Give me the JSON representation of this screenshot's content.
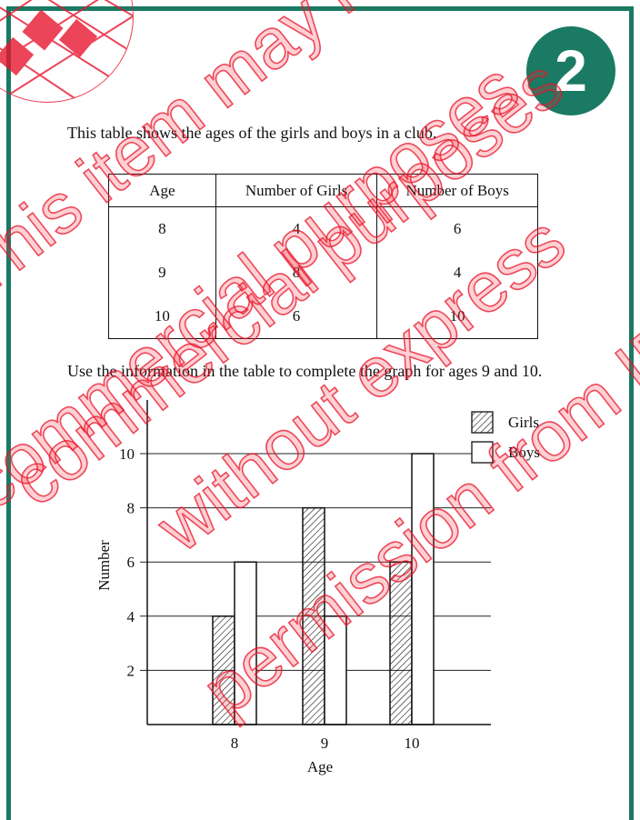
{
  "badge": {
    "number": "2"
  },
  "intro_text": "This table shows the ages of the girls and boys in a club.",
  "table": {
    "headers": [
      "Age",
      "Number of Girls",
      "Number of Boys"
    ],
    "rows": [
      [
        "8",
        "4",
        "6"
      ],
      [
        "9",
        "8",
        "4"
      ],
      [
        "10",
        "6",
        "10"
      ]
    ]
  },
  "instruction_text": "Use the information in the table to complete the graph for ages 9 and 10.",
  "chart_data": {
    "type": "bar",
    "categories": [
      "8",
      "9",
      "10"
    ],
    "series": [
      {
        "name": "Girls",
        "values": [
          4,
          8,
          6
        ],
        "style": "hatched"
      },
      {
        "name": "Boys",
        "values": [
          6,
          4,
          10
        ],
        "style": "empty"
      }
    ],
    "xlabel": "Age",
    "ylabel": "Number",
    "yticks": [
      "2",
      "4",
      "6",
      "8",
      "10"
    ],
    "ylim": [
      0,
      12
    ],
    "grid": true,
    "legend_position": "top-right"
  },
  "watermark": {
    "lines": [
      "This item may not be used for",
      "commercial purposes",
      "or commercial purposes",
      "without express",
      "permission from IEA"
    ],
    "color": "#e8162f"
  }
}
